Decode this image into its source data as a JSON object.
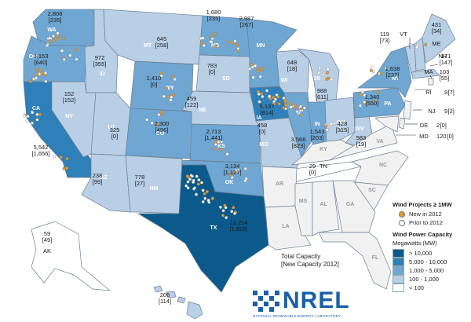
{
  "states": [
    {
      "abbr": "WA",
      "val": "2,808",
      "new": "[235]"
    },
    {
      "abbr": "OR",
      "val": "3,153",
      "new": "[640]"
    },
    {
      "abbr": "CA",
      "val": "5,542",
      "new": "[1,656]"
    },
    {
      "abbr": "ID",
      "val": "972",
      "new": "[355]"
    },
    {
      "abbr": "NV",
      "val": "152",
      "new": "[152]"
    },
    {
      "abbr": "MT",
      "val": "645",
      "new": "[258]"
    },
    {
      "abbr": "WY",
      "val": "1,410",
      "new": "[0]"
    },
    {
      "abbr": "UT",
      "val": "325",
      "new": "[0]"
    },
    {
      "abbr": "AZ",
      "val": "238",
      "new": "[99]"
    },
    {
      "abbr": "CO",
      "val": "2,300",
      "new": "[496]"
    },
    {
      "abbr": "NM",
      "val": "778",
      "new": "[27]"
    },
    {
      "abbr": "ND",
      "val": "1,680",
      "new": "[235]"
    },
    {
      "abbr": "SD",
      "val": "783",
      "new": "[0]"
    },
    {
      "abbr": "NE",
      "val": "459",
      "new": "[122]"
    },
    {
      "abbr": "KS",
      "val": "2,713",
      "new": "[1,441]"
    },
    {
      "abbr": "OK",
      "val": "3,134",
      "new": "[1,127]"
    },
    {
      "abbr": "TX",
      "val": "12,214",
      "new": "[1,826]"
    },
    {
      "abbr": "MN",
      "val": "2,987",
      "new": "[267]"
    },
    {
      "abbr": "IA",
      "val": "5,137",
      "new": "[814]"
    },
    {
      "abbr": "MO",
      "val": "458",
      "new": "[0]"
    },
    {
      "abbr": "WI",
      "val": "648",
      "new": "[18]"
    },
    {
      "abbr": "IL",
      "val": "3,568",
      "new": "[823]"
    },
    {
      "abbr": "MI",
      "val": "988",
      "new": "[611]"
    },
    {
      "abbr": "IN",
      "val": "1,543",
      "new": "[203]"
    },
    {
      "abbr": "OH",
      "val": "428",
      "new": "[315]"
    },
    {
      "abbr": "WV",
      "val": "583",
      "new": "[19]"
    },
    {
      "abbr": "PA",
      "val": "1,340",
      "new": "[550]"
    },
    {
      "abbr": "NY",
      "val": "1,638",
      "new": "[237]"
    },
    {
      "abbr": "VT",
      "val": "119",
      "new": "[73]"
    },
    {
      "abbr": "ME",
      "val": "431",
      "new": "[34]"
    },
    {
      "abbr": "NH",
      "val": "171",
      "new": "[147]"
    },
    {
      "abbr": "MA",
      "val": "103",
      "new": "[55]"
    },
    {
      "abbr": "RI",
      "val": "9",
      "new": "[7]"
    },
    {
      "abbr": "NJ",
      "val": "9",
      "new": "[2]"
    },
    {
      "abbr": "DE",
      "val": "2",
      "new": "[0]"
    },
    {
      "abbr": "MD",
      "val": "120",
      "new": "[0]"
    },
    {
      "abbr": "TN",
      "val": "29",
      "new": "[0]"
    },
    {
      "abbr": "AK",
      "val": "59",
      "new": "[49]"
    },
    {
      "abbr": "HI",
      "val": "206",
      "new": "[114]"
    }
  ],
  "unlabeled_states": [
    "KY",
    "VA",
    "NC",
    "SC",
    "GA",
    "AL",
    "MS",
    "LA",
    "AR",
    "FL"
  ],
  "legend": {
    "projects_title": "Wind Projects ≥ 1MW",
    "new_label": "New in 2012",
    "prior_label": "Prior to 2012",
    "capacity_title": "Wind Power Capacity",
    "capacity_units": "Megawatts (MW)",
    "classes": [
      {
        "label": "> 10,000",
        "color": "#0c5a8c"
      },
      {
        "label": "5,000 - 10,000",
        "color": "#2f7fb8"
      },
      {
        "label": "1,000 - 5,000",
        "color": "#6fa6d2"
      },
      {
        "label": "100 - 1,000",
        "color": "#b9cfe6"
      },
      {
        "label": "< 100",
        "color": "#ffffff"
      }
    ]
  },
  "total_label": "Total Capacity",
  "total_sub": "[New Capacity 2012]",
  "logo": {
    "word": "NREL",
    "tagline": "NATIONAL RENEWABLE ENERGY LABORATORY"
  },
  "colors": {
    "no_data": "#f1f1f1",
    "new_dot": "#e89a2a",
    "prior_dot": "#ffffff",
    "border": "#6d7f93"
  }
}
